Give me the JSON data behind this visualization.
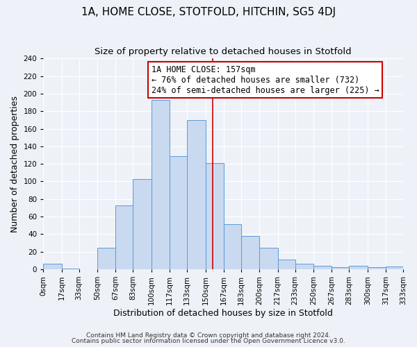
{
  "title": "1A, HOME CLOSE, STOTFOLD, HITCHIN, SG5 4DJ",
  "subtitle": "Size of property relative to detached houses in Stotfold",
  "xlabel": "Distribution of detached houses by size in Stotfold",
  "ylabel": "Number of detached properties",
  "bar_color": "#c9d9f0",
  "bar_edge_color": "#5b9bd5",
  "background_color": "#eef2f8",
  "grid_color": "#ffffff",
  "bin_labels": [
    "0sqm",
    "17sqm",
    "33sqm",
    "50sqm",
    "67sqm",
    "83sqm",
    "100sqm",
    "117sqm",
    "133sqm",
    "150sqm",
    "167sqm",
    "183sqm",
    "200sqm",
    "217sqm",
    "233sqm",
    "250sqm",
    "267sqm",
    "283sqm",
    "300sqm",
    "317sqm",
    "333sqm"
  ],
  "bar_heights": [
    6,
    1,
    0,
    24,
    73,
    103,
    193,
    129,
    170,
    121,
    51,
    38,
    24,
    11,
    6,
    4,
    2,
    4,
    2,
    3
  ],
  "bin_edges": [
    0,
    17,
    33,
    50,
    67,
    83,
    100,
    117,
    133,
    150,
    167,
    183,
    200,
    217,
    233,
    250,
    267,
    283,
    300,
    317,
    333
  ],
  "vline_x": 157,
  "vline_color": "#cc0000",
  "annotation_title": "1A HOME CLOSE: 157sqm",
  "annotation_line1": "← 76% of detached houses are smaller (732)",
  "annotation_line2": "24% of semi-detached houses are larger (225) →",
  "annotation_box_color": "#cc0000",
  "ylim": [
    0,
    240
  ],
  "yticks": [
    0,
    20,
    40,
    60,
    80,
    100,
    120,
    140,
    160,
    180,
    200,
    220,
    240
  ],
  "footer1": "Contains HM Land Registry data © Crown copyright and database right 2024.",
  "footer2": "Contains public sector information licensed under the Open Government Licence v3.0.",
  "title_fontsize": 11,
  "subtitle_fontsize": 9.5,
  "tick_fontsize": 7.5,
  "label_fontsize": 9,
  "footer_fontsize": 6.5
}
